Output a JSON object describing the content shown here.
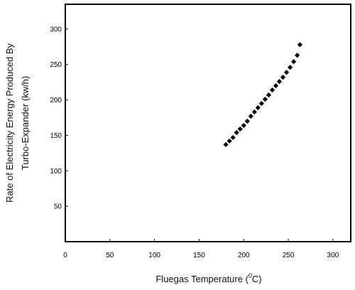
{
  "chart_data": {
    "type": "scatter",
    "title": "",
    "xlabel_prefix": "Fluegas Temperature (",
    "xlabel_sup": "0",
    "xlabel_suffix": "C)",
    "ylabel_line1": "Rate of Electricity Energy Produced By",
    "ylabel_line2": "Turbo-Expander (kw/h)",
    "xlim": [
      0,
      320
    ],
    "ylim": [
      0,
      335
    ],
    "xticks": [
      0,
      50,
      100,
      150,
      200,
      250,
      300
    ],
    "yticks": [
      50,
      100,
      150,
      200,
      250,
      300
    ],
    "grid": false,
    "legend": "none",
    "marker_color": "#000000",
    "series": [
      {
        "x": [
          180,
          184,
          188,
          192,
          196,
          200,
          204,
          208,
          212,
          216,
          220,
          224,
          228,
          232,
          236,
          240,
          244,
          248,
          252,
          256,
          260,
          263
        ],
        "y": [
          137,
          142,
          147,
          154,
          159,
          164,
          170,
          177,
          183,
          189,
          195,
          201,
          207,
          214,
          220,
          226,
          232,
          239,
          246,
          254,
          263,
          278
        ]
      }
    ]
  }
}
